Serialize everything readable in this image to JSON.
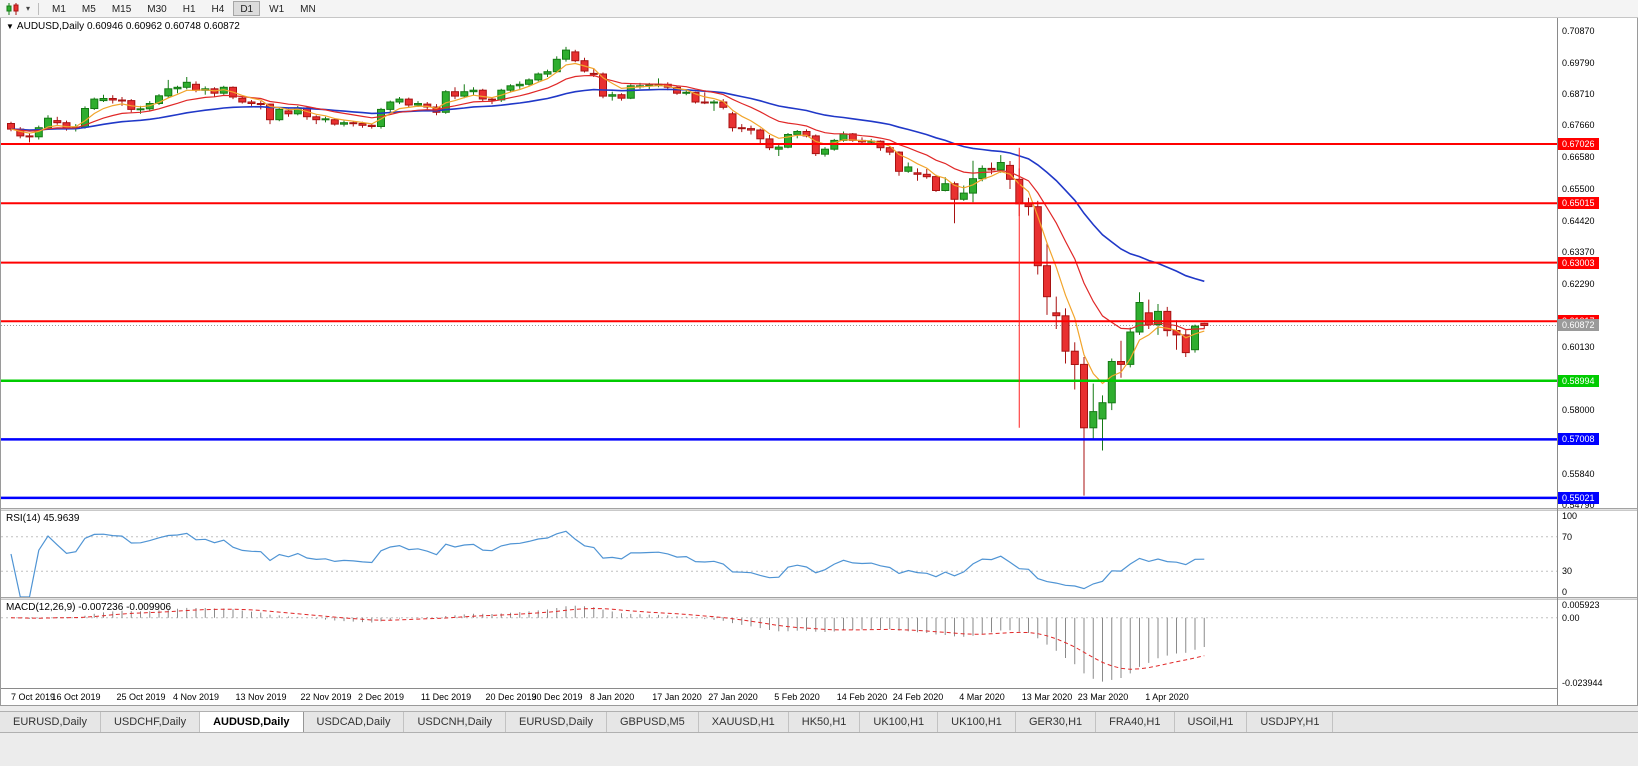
{
  "toolbar": {
    "caret": "▾",
    "timeframes": [
      {
        "label": "M1",
        "active": false
      },
      {
        "label": "M5",
        "active": false
      },
      {
        "label": "M15",
        "active": false
      },
      {
        "label": "M30",
        "active": false
      },
      {
        "label": "H1",
        "active": false
      },
      {
        "label": "H4",
        "active": false
      },
      {
        "label": "D1",
        "active": true
      },
      {
        "label": "W1",
        "active": false
      },
      {
        "label": "MN",
        "active": false
      }
    ]
  },
  "chart": {
    "title_marker": "▼",
    "title_symbol": "AUDUSD,Daily",
    "title_ohlc": "0.60946 0.60962 0.60748 0.60872"
  },
  "indicators": {
    "rsi": {
      "label": "RSI(14) 45.9639",
      "levels": [
        100,
        70,
        30,
        0
      ]
    },
    "macd": {
      "label": "MACD(12,26,9) -0.007236 -0.009906",
      "axis": [
        {
          "text": "0.005923",
          "value": 0.005923
        },
        {
          "text": "0.00",
          "value": 0
        },
        {
          "text": "-0.023944",
          "value": -0.023944
        }
      ]
    }
  },
  "tabbar": {
    "tabs": [
      {
        "label": "EURUSD,Daily",
        "active": false
      },
      {
        "label": "USDCHF,Daily",
        "active": false
      },
      {
        "label": "AUDUSD,Daily",
        "active": true
      },
      {
        "label": "USDCAD,Daily",
        "active": false
      },
      {
        "label": "USDCNH,Daily",
        "active": false
      },
      {
        "label": "EURUSD,Daily",
        "active": false
      },
      {
        "label": "GBPUSD,M5",
        "active": false
      },
      {
        "label": "XAUUSD,H1",
        "active": false
      },
      {
        "label": "HK50,H1",
        "active": false
      },
      {
        "label": "UK100,H1",
        "active": false
      },
      {
        "label": "UK100,H1",
        "active": false
      },
      {
        "label": "GER30,H1",
        "active": false
      },
      {
        "label": "FRA40,H1",
        "active": false
      },
      {
        "label": "USOil,H1",
        "active": false
      },
      {
        "label": "USDJPY,H1",
        "active": false
      }
    ]
  },
  "colors": {
    "candle_up_fill": "#2fae2f",
    "candle_up_edge": "#157a15",
    "candle_down_fill": "#e83030",
    "candle_down_edge": "#a81212",
    "resistance_red": "#ff0000",
    "support_green": "#00cc00",
    "support_blue": "#0000ff",
    "current_price_line": "#9a9a9a",
    "rsi_line": "#4f94d4",
    "macd_histogram": "#8a8a8a",
    "macd_signal": "#e02828",
    "level_dash": "#c0c0c0"
  },
  "chart_data": {
    "type": "candlestick",
    "symbol": "AUDUSD",
    "timeframe": "Daily",
    "title": "AUDUSD,Daily 0.60946 0.60962 0.60748 0.60872",
    "price_range": {
      "max": 0.713,
      "min": 0.5468
    },
    "y_axis_ticks": [
      "0.70870",
      "0.69790",
      "0.68710",
      "0.67660",
      "0.66580",
      "0.65500",
      "0.64420",
      "0.63370",
      "0.62290",
      "0.60130",
      "0.58000",
      "0.55840",
      "0.54790"
    ],
    "x_labels": [
      "7 Oct 2019",
      "16 Oct 2019",
      "25 Oct 2019",
      "4 Nov 2019",
      "13 Nov 2019",
      "22 Nov 2019",
      "2 Dec 2019",
      "11 Dec 2019",
      "20 Dec 2019",
      "30 Dec 2019",
      "8 Jan 2020",
      "17 Jan 2020",
      "27 Jan 2020",
      "5 Feb 2020",
      "14 Feb 2020",
      "24 Feb 2020",
      "4 Mar 2020",
      "13 Mar 2020",
      "23 Mar 2020",
      "1 Apr 2020"
    ],
    "x_label_indices": [
      0,
      7,
      14,
      20,
      27,
      34,
      40,
      47,
      54,
      59,
      65,
      72,
      78,
      85,
      92,
      98,
      105,
      112,
      118,
      125
    ],
    "candles": [
      [
        0.6772,
        0.6778,
        0.6746,
        0.6753
      ],
      [
        0.6753,
        0.676,
        0.6722,
        0.673
      ],
      [
        0.673,
        0.674,
        0.6708,
        0.6727
      ],
      [
        0.6727,
        0.6765,
        0.6718,
        0.6758
      ],
      [
        0.6758,
        0.68,
        0.6752,
        0.679
      ],
      [
        0.6782,
        0.6795,
        0.6768,
        0.6775
      ],
      [
        0.6775,
        0.6782,
        0.6748,
        0.6755
      ],
      [
        0.6755,
        0.677,
        0.6745,
        0.676
      ],
      [
        0.676,
        0.683,
        0.6755,
        0.6823
      ],
      [
        0.6823,
        0.686,
        0.6818,
        0.6855
      ],
      [
        0.685,
        0.687,
        0.6845,
        0.6857
      ],
      [
        0.6857,
        0.6868,
        0.684,
        0.6852
      ],
      [
        0.6852,
        0.6862,
        0.6832,
        0.685
      ],
      [
        0.685,
        0.6855,
        0.681,
        0.682
      ],
      [
        0.682,
        0.6832,
        0.6805,
        0.6822
      ],
      [
        0.6822,
        0.6848,
        0.6815,
        0.684
      ],
      [
        0.684,
        0.6872,
        0.6835,
        0.6866
      ],
      [
        0.6866,
        0.692,
        0.6858,
        0.689
      ],
      [
        0.689,
        0.69,
        0.6875,
        0.6895
      ],
      [
        0.6895,
        0.693,
        0.6888,
        0.6912
      ],
      [
        0.6905,
        0.6915,
        0.6878,
        0.6885
      ],
      [
        0.6885,
        0.6898,
        0.687,
        0.689
      ],
      [
        0.689,
        0.6895,
        0.6862,
        0.6875
      ],
      [
        0.6875,
        0.69,
        0.687,
        0.6895
      ],
      [
        0.6895,
        0.6898,
        0.6855,
        0.6862
      ],
      [
        0.6858,
        0.6865,
        0.684,
        0.6845
      ],
      [
        0.6845,
        0.6852,
        0.6832,
        0.684
      ],
      [
        0.684,
        0.6848,
        0.682,
        0.6838
      ],
      [
        0.6838,
        0.684,
        0.677,
        0.6785
      ],
      [
        0.6785,
        0.6825,
        0.678,
        0.682
      ],
      [
        0.6815,
        0.6822,
        0.6795,
        0.6805
      ],
      [
        0.6805,
        0.6832,
        0.68,
        0.6825
      ],
      [
        0.6825,
        0.683,
        0.6785,
        0.6795
      ],
      [
        0.6795,
        0.68,
        0.677,
        0.6785
      ],
      [
        0.6785,
        0.6795,
        0.6776,
        0.6788
      ],
      [
        0.6785,
        0.679,
        0.6765,
        0.677
      ],
      [
        0.677,
        0.6782,
        0.6762,
        0.6775
      ],
      [
        0.6775,
        0.678,
        0.6762,
        0.6772
      ],
      [
        0.6772,
        0.6778,
        0.6758,
        0.6766
      ],
      [
        0.6766,
        0.6772,
        0.6755,
        0.6762
      ],
      [
        0.6762,
        0.6825,
        0.6755,
        0.682
      ],
      [
        0.682,
        0.685,
        0.681,
        0.6845
      ],
      [
        0.6845,
        0.6862,
        0.6838,
        0.6855
      ],
      [
        0.6855,
        0.686,
        0.6828,
        0.6835
      ],
      [
        0.6835,
        0.6848,
        0.6828,
        0.684
      ],
      [
        0.6838,
        0.6845,
        0.682,
        0.6828
      ],
      [
        0.6828,
        0.6838,
        0.68,
        0.681
      ],
      [
        0.681,
        0.6885,
        0.6805,
        0.688
      ],
      [
        0.688,
        0.6895,
        0.6855,
        0.6865
      ],
      [
        0.6865,
        0.6905,
        0.6858,
        0.688
      ],
      [
        0.688,
        0.6895,
        0.6868,
        0.6885
      ],
      [
        0.6885,
        0.689,
        0.6848,
        0.6855
      ],
      [
        0.6855,
        0.6862,
        0.6838,
        0.6852
      ],
      [
        0.6852,
        0.689,
        0.6845,
        0.6885
      ],
      [
        0.6885,
        0.6905,
        0.6878,
        0.69
      ],
      [
        0.69,
        0.6915,
        0.689,
        0.6905
      ],
      [
        0.6905,
        0.6925,
        0.69,
        0.692
      ],
      [
        0.692,
        0.6945,
        0.6915,
        0.694
      ],
      [
        0.694,
        0.6955,
        0.693,
        0.6948
      ],
      [
        0.6948,
        0.7,
        0.6944,
        0.699
      ],
      [
        0.699,
        0.7032,
        0.6982,
        0.7021
      ],
      [
        0.7015,
        0.7022,
        0.698,
        0.6985
      ],
      [
        0.6985,
        0.6995,
        0.6945,
        0.695
      ],
      [
        0.6942,
        0.696,
        0.693,
        0.694
      ],
      [
        0.694,
        0.6945,
        0.6858,
        0.6865
      ],
      [
        0.6865,
        0.688,
        0.685,
        0.687
      ],
      [
        0.687,
        0.6875,
        0.685,
        0.6858
      ],
      [
        0.6858,
        0.6905,
        0.6855,
        0.69
      ],
      [
        0.6898,
        0.691,
        0.689,
        0.69
      ],
      [
        0.69,
        0.691,
        0.6885,
        0.6903
      ],
      [
        0.6903,
        0.6925,
        0.6895,
        0.6905
      ],
      [
        0.6905,
        0.6912,
        0.6885,
        0.6895
      ],
      [
        0.6895,
        0.69,
        0.687,
        0.6875
      ],
      [
        0.6875,
        0.6885,
        0.6868,
        0.6878
      ],
      [
        0.6878,
        0.688,
        0.684,
        0.6845
      ],
      [
        0.6845,
        0.6878,
        0.6838,
        0.6842
      ],
      [
        0.6842,
        0.6852,
        0.6815,
        0.6845
      ],
      [
        0.6845,
        0.6855,
        0.682,
        0.6827
      ],
      [
        0.6805,
        0.6812,
        0.6745,
        0.6758
      ],
      [
        0.6758,
        0.677,
        0.6743,
        0.6755
      ],
      [
        0.6755,
        0.6765,
        0.6735,
        0.675
      ],
      [
        0.675,
        0.6755,
        0.67,
        0.672
      ],
      [
        0.672,
        0.6733,
        0.6682,
        0.669
      ],
      [
        0.6685,
        0.6705,
        0.6662,
        0.6692
      ],
      [
        0.6692,
        0.674,
        0.6688,
        0.6735
      ],
      [
        0.6735,
        0.675,
        0.6722,
        0.6745
      ],
      [
        0.6745,
        0.6752,
        0.6725,
        0.673
      ],
      [
        0.673,
        0.6735,
        0.6662,
        0.667
      ],
      [
        0.6668,
        0.6692,
        0.666,
        0.6685
      ],
      [
        0.6685,
        0.672,
        0.668,
        0.6715
      ],
      [
        0.6715,
        0.6745,
        0.671,
        0.6737
      ],
      [
        0.6737,
        0.674,
        0.671,
        0.6715
      ],
      [
        0.6715,
        0.6725,
        0.67,
        0.671
      ],
      [
        0.671,
        0.672,
        0.67,
        0.6712
      ],
      [
        0.6712,
        0.6715,
        0.668,
        0.669
      ],
      [
        0.669,
        0.6695,
        0.6665,
        0.6675
      ],
      [
        0.6675,
        0.6678,
        0.6595,
        0.661
      ],
      [
        0.661,
        0.664,
        0.6605,
        0.6625
      ],
      [
        0.6605,
        0.662,
        0.6578,
        0.66
      ],
      [
        0.66,
        0.6618,
        0.6585,
        0.6592
      ],
      [
        0.6592,
        0.6598,
        0.654,
        0.6545
      ],
      [
        0.6545,
        0.659,
        0.6542,
        0.6568
      ],
      [
        0.6568,
        0.6575,
        0.6434,
        0.6515
      ],
      [
        0.6515,
        0.6562,
        0.651,
        0.6536
      ],
      [
        0.6536,
        0.6646,
        0.6505,
        0.6585
      ],
      [
        0.6585,
        0.663,
        0.6576,
        0.662
      ],
      [
        0.662,
        0.664,
        0.66,
        0.6615
      ],
      [
        0.6615,
        0.6665,
        0.6605,
        0.664
      ],
      [
        0.663,
        0.6645,
        0.655,
        0.6583
      ],
      [
        0.6583,
        0.662,
        0.6458,
        0.65
      ],
      [
        0.65,
        0.652,
        0.646,
        0.649
      ],
      [
        0.649,
        0.651,
        0.626,
        0.629
      ],
      [
        0.629,
        0.6365,
        0.6123,
        0.6185
      ],
      [
        0.613,
        0.6185,
        0.6075,
        0.612
      ],
      [
        0.612,
        0.6145,
        0.5958,
        0.6
      ],
      [
        0.6,
        0.603,
        0.587,
        0.5955
      ],
      [
        0.5955,
        0.598,
        0.551,
        0.574
      ],
      [
        0.574,
        0.589,
        0.57,
        0.5795
      ],
      [
        0.577,
        0.585,
        0.5663,
        0.5825
      ],
      [
        0.5825,
        0.5975,
        0.58,
        0.5965
      ],
      [
        0.5965,
        0.6035,
        0.591,
        0.5955
      ],
      [
        0.5955,
        0.608,
        0.5945,
        0.6065
      ],
      [
        0.6065,
        0.62,
        0.6055,
        0.6165
      ],
      [
        0.613,
        0.6175,
        0.6075,
        0.609
      ],
      [
        0.609,
        0.616,
        0.6055,
        0.6135
      ],
      [
        0.6135,
        0.615,
        0.605,
        0.607
      ],
      [
        0.607,
        0.6105,
        0.6005,
        0.6055
      ],
      [
        0.6055,
        0.6073,
        0.598,
        0.5995
      ],
      [
        0.6005,
        0.609,
        0.5995,
        0.6085
      ],
      [
        0.60946,
        0.60962,
        0.60748,
        0.60872
      ]
    ],
    "moving_averages": [
      {
        "name": "ma-slow-blue",
        "period": 34,
        "color": "#2038c8",
        "width": 1.6
      },
      {
        "name": "ma-mid-red",
        "period": 13,
        "color": "#e02828",
        "width": 1.2
      },
      {
        "name": "ma-fast-orange",
        "period": 5,
        "color": "#f2a52c",
        "width": 1.2
      }
    ],
    "horizontal_lines": [
      {
        "value": 0.67026,
        "label": "0.67026",
        "color": "#ff0000",
        "width": 2
      },
      {
        "value": 0.65015,
        "label": "0.65015",
        "color": "#ff0000",
        "width": 2
      },
      {
        "value": 0.63003,
        "label": "0.63003",
        "color": "#ff0000",
        "width": 2
      },
      {
        "value": 0.61017,
        "label": "0.61017",
        "color": "#ff0000",
        "width": 2
      },
      {
        "value": 0.58994,
        "label": "0.58994",
        "color": "#00cc00",
        "width": 2.5
      },
      {
        "value": 0.57008,
        "label": "0.57008",
        "color": "#0000ff",
        "width": 2.5
      },
      {
        "value": 0.55021,
        "label": "0.55021",
        "color": "#0000ff",
        "width": 2.5
      }
    ],
    "current_price": {
      "value": 0.60872,
      "label": "0.60872"
    },
    "annotations": [
      {
        "type": "vertical-segment",
        "index": 109,
        "from": 0.669,
        "to": 0.574,
        "color": "#ff2020"
      }
    ],
    "indicator_panels": [
      {
        "name": "RSI",
        "period": 14,
        "value": "45.9639",
        "upper": 70,
        "lower": 30,
        "range": [
          0,
          100
        ]
      },
      {
        "name": "MACD",
        "fast": 12,
        "slow": 26,
        "signal": 9,
        "values": [
          "-0.007236",
          "-0.009906"
        ],
        "range": [
          -0.023944,
          0.005923
        ]
      }
    ]
  }
}
